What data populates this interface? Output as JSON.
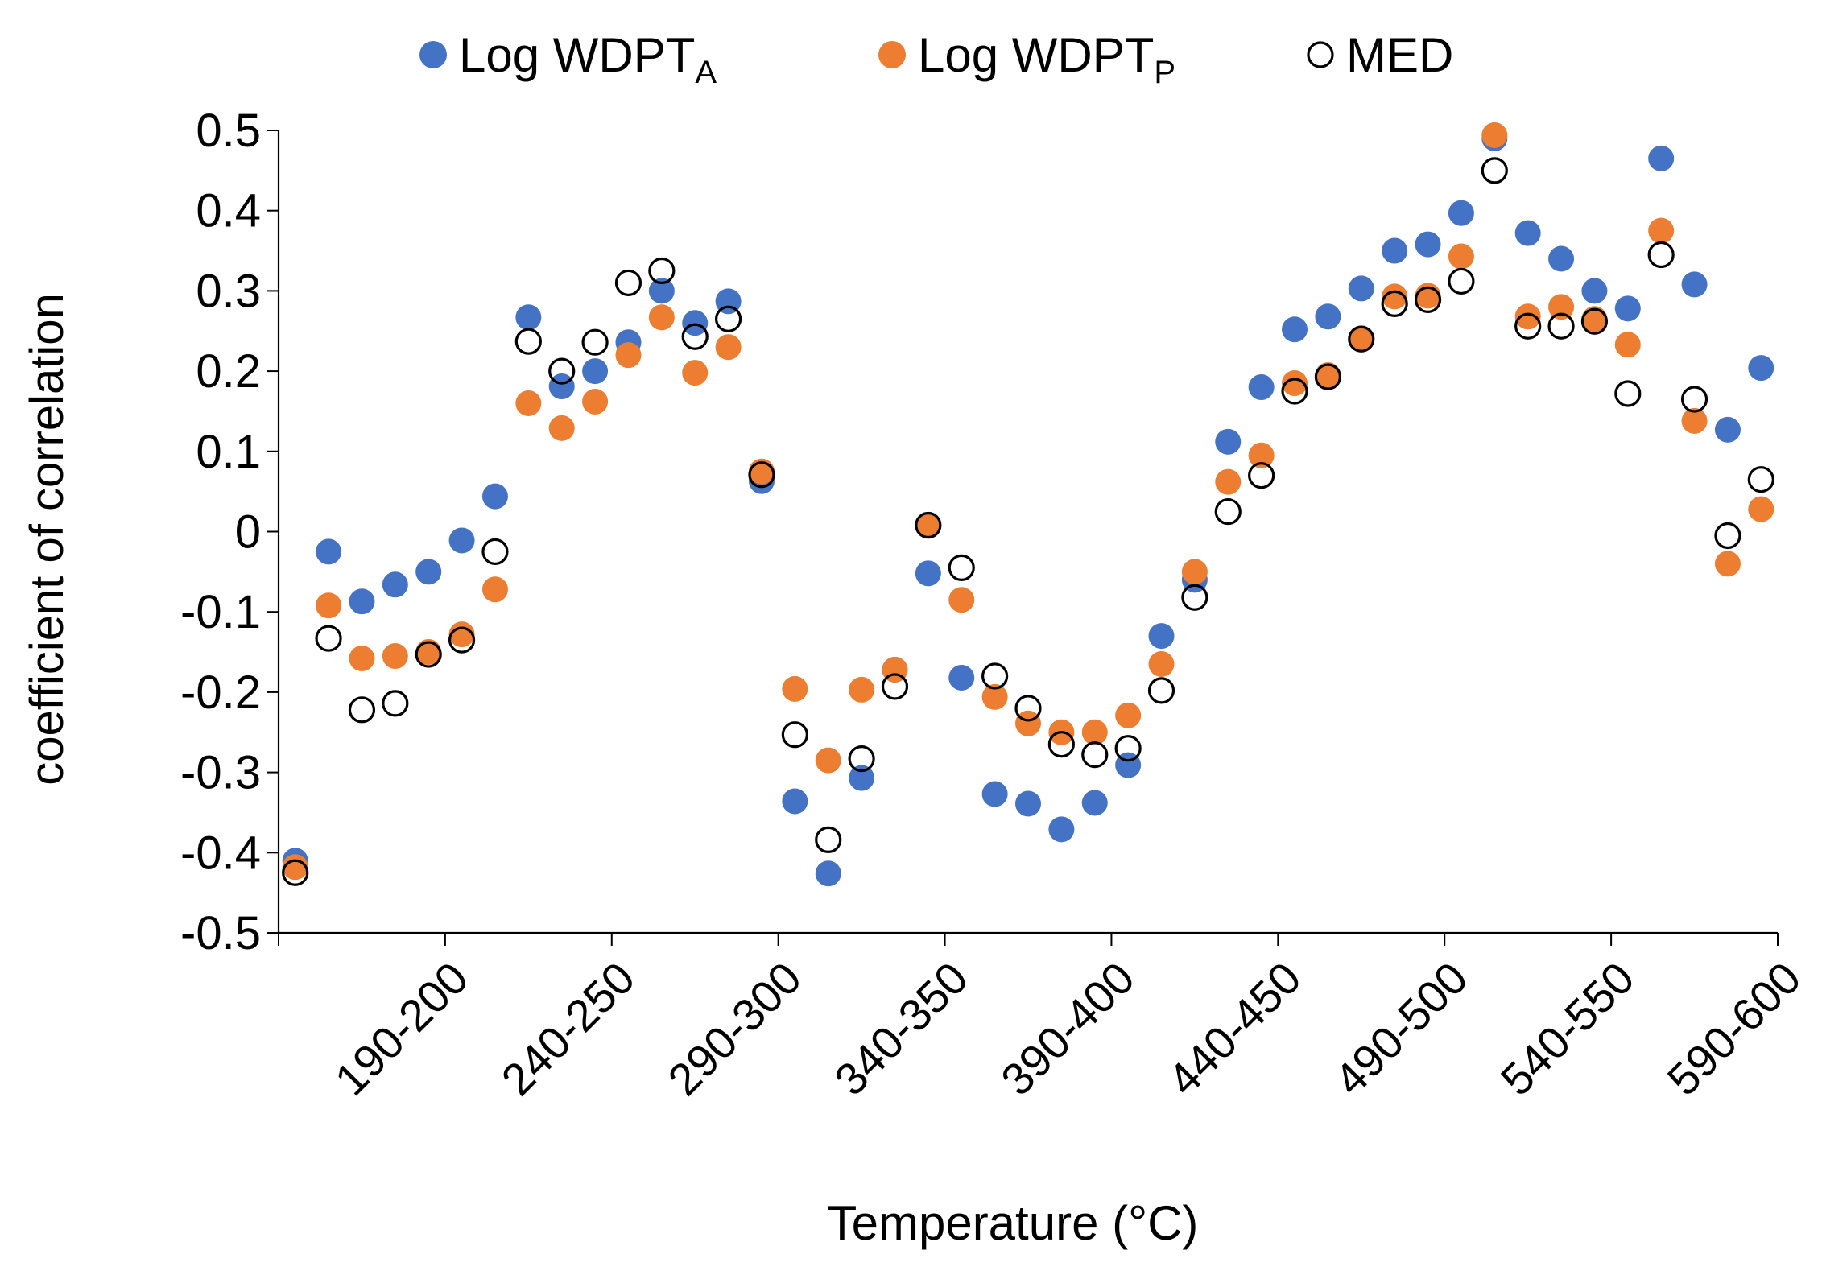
{
  "chart_data": {
    "type": "scatter",
    "xlabel": "Temperature (°C)",
    "ylabel": "coefficient of correlation",
    "ylim": [
      -0.5,
      0.5
    ],
    "y_ticks": [
      "0.5",
      "0.4",
      "0.3",
      "0.2",
      "0.1",
      "0",
      "-0.1",
      "-0.2",
      "-0.3",
      "-0.4",
      "-0.5"
    ],
    "y_tick_values": [
      0.5,
      0.4,
      0.3,
      0.2,
      0.1,
      0,
      -0.1,
      -0.2,
      -0.3,
      -0.4,
      -0.5
    ],
    "x_tick_labels": [
      "190-200",
      "240-250",
      "290-300",
      "340-350",
      "390-400",
      "440-450",
      "490-500",
      "540-550",
      "590-600"
    ],
    "x_tick_label_positions": [
      5,
      10,
      15,
      20,
      25,
      30,
      35,
      40,
      45
    ],
    "grid": false,
    "legend_position": "top",
    "series": [
      {
        "name": "Log WDPT",
        "subscript": "A",
        "color": "#4472C4",
        "marker": "filled-circle",
        "values": [
          -0.41,
          -0.025,
          -0.087,
          -0.066,
          -0.05,
          -0.011,
          0.044,
          0.267,
          0.181,
          0.2,
          0.236,
          0.3,
          0.26,
          0.287,
          0.063,
          -0.336,
          -0.426,
          -0.307,
          -0.172,
          -0.052,
          -0.182,
          -0.327,
          -0.339,
          -0.371,
          -0.338,
          -0.291,
          -0.13,
          -0.06,
          0.112,
          0.18,
          0.252,
          0.268,
          0.303,
          0.35,
          0.358,
          0.397,
          0.49,
          0.372,
          0.34,
          0.3,
          0.278,
          0.465,
          0.308,
          0.127,
          0.204
        ]
      },
      {
        "name": "Log WDPT",
        "subscript": "P",
        "color": "#ED7D31",
        "marker": "filled-circle",
        "values": [
          -0.418,
          -0.092,
          -0.158,
          -0.155,
          -0.15,
          -0.128,
          -0.072,
          0.16,
          0.129,
          0.162,
          0.22,
          0.267,
          0.198,
          0.23,
          0.075,
          -0.196,
          -0.285,
          -0.197,
          -0.172,
          0.007,
          -0.085,
          -0.206,
          -0.239,
          -0.25,
          -0.25,
          -0.229,
          -0.165,
          -0.05,
          0.062,
          0.095,
          0.185,
          0.195,
          0.241,
          0.293,
          0.294,
          0.343,
          0.494,
          0.268,
          0.28,
          0.265,
          0.233,
          0.375,
          0.138,
          -0.04,
          0.028
        ]
      },
      {
        "name": "MED",
        "subscript": "",
        "color": "#000000",
        "marker": "hollow-circle",
        "values": [
          -0.425,
          -0.133,
          -0.222,
          -0.214,
          -0.153,
          -0.135,
          -0.025,
          0.237,
          0.2,
          0.236,
          0.31,
          0.325,
          0.243,
          0.265,
          0.071,
          -0.253,
          -0.384,
          -0.283,
          -0.193,
          0.008,
          -0.045,
          -0.18,
          -0.22,
          -0.265,
          -0.278,
          -0.27,
          -0.198,
          -0.082,
          0.025,
          0.07,
          0.175,
          0.193,
          0.24,
          0.284,
          0.289,
          0.312,
          0.45,
          0.256,
          0.256,
          0.262,
          0.172,
          0.345,
          0.165,
          -0.005,
          0.065
        ]
      }
    ]
  }
}
